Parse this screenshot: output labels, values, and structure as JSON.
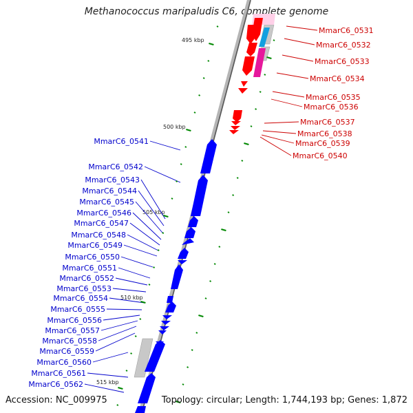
{
  "title": "Methanococcus maripaludis C6, complete genome",
  "accession": "Accession: NC_009975",
  "topology": "Topology: circular; Length: 1,744,193 bp; Genes: 1,872",
  "colors": {
    "backbone": "#8c8c8c",
    "forward_gene": "#ff0000",
    "forward_label": "#cc0000",
    "reverse_gene": "#0000ff",
    "reverse_label": "#0000cc",
    "ticks": "#008800",
    "pseudo": "#bbbbbb",
    "rna_magenta": "#e6189c",
    "rna_cyan": "#12a0e0",
    "rna_pink": "#ff80c0"
  },
  "ticks": [
    "495 kbp",
    "500 kbp",
    "505 kbp",
    "510 kbp",
    "515 kbp"
  ],
  "forward_genes": [
    "MmarC6_0531",
    "MmarC6_0532",
    "MmarC6_0533",
    "MmarC6_0534",
    "MmarC6_0535",
    "MmarC6_0536",
    "MmarC6_0537",
    "MmarC6_0538",
    "MmarC6_0539",
    "MmarC6_0540"
  ],
  "reverse_genes": [
    "MmarC6_0541",
    "MmarC6_0542",
    "MmarC6_0543",
    "MmarC6_0544",
    "MmarC6_0545",
    "MmarC6_0546",
    "MmarC6_0547",
    "MmarC6_0548",
    "MmarC6_0549",
    "MmarC6_0550",
    "MmarC6_0551",
    "MmarC6_0552",
    "MmarC6_0553",
    "MmarC6_0554",
    "MmarC6_0555",
    "MmarC6_0556",
    "MmarC6_0557",
    "MmarC6_0558",
    "MmarC6_0559",
    "MmarC6_0560",
    "MmarC6_0561",
    "MmarC6_0562"
  ]
}
